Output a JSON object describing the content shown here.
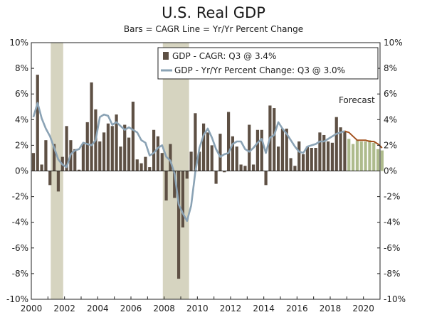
{
  "title": "U.S. Real GDP",
  "subtitle": "Bars = CAGR     Line = Yr/Yr Percent Change",
  "chart_data": {
    "type": "bar",
    "title": "U.S. Real GDP",
    "subtitle": "Bars = CAGR     Line = Yr/Yr Percent Change",
    "ylim": [
      -10,
      10
    ],
    "xlim": [
      2000,
      2021
    ],
    "y_ticks_left": [
      "10%",
      "8%",
      "6%",
      "4%",
      "2%",
      "0%",
      "-2%",
      "-4%",
      "-6%",
      "-8%",
      "-10%"
    ],
    "y_ticks_right": [
      "10%",
      "8%",
      "6%",
      "4%",
      "2%",
      "0%",
      "-2%",
      "-4%",
      "-6%",
      "-8%",
      "-10%"
    ],
    "x_ticks": [
      "2000",
      "2002",
      "2004",
      "2006",
      "2008",
      "2010",
      "2012",
      "2014",
      "2016",
      "2018",
      "2020"
    ],
    "grid": false,
    "legend": {
      "placement": "top-right",
      "entries": [
        {
          "label": "GDP - CAGR: Q3 @ 3.4%",
          "kind": "bar"
        },
        {
          "label": "GDP - Yr/Yr Percent Change: Q3 @ 3.0%",
          "kind": "line"
        }
      ]
    },
    "annotations": [
      {
        "text": "Forecast",
        "x": 2019.6,
        "y": 5.3
      }
    ],
    "recessions": [
      [
        2001.17,
        2001.92
      ],
      [
        2007.92,
        2009.5
      ]
    ],
    "colors": {
      "bar_actual": "#5e5044",
      "bar_forecast": "#aebb8c",
      "line_actual": "#8ba3b5",
      "line_forecast": "#a3521f",
      "recession": "#d6d4c0"
    },
    "quarters_start": "2000 Q1",
    "forecast_start_index": 76,
    "series": [
      {
        "name": "GDP - CAGR",
        "kind": "bar",
        "values": [
          1.4,
          7.5,
          0.5,
          2.4,
          -1.1,
          2.1,
          -1.6,
          1.1,
          3.5,
          2.4,
          1.7,
          0.1,
          2.1,
          3.8,
          6.9,
          4.8,
          2.3,
          3.0,
          3.7,
          3.5,
          4.4,
          1.9,
          3.6,
          2.6,
          5.4,
          0.9,
          0.6,
          1.1,
          0.3,
          3.2,
          2.7,
          1.4,
          -2.3,
          2.1,
          -2.1,
          -8.4,
          -4.4,
          -0.6,
          1.5,
          4.5,
          1.5,
          3.7,
          3.0,
          2.0,
          -1.0,
          2.9,
          -0.1,
          4.6,
          2.7,
          1.9,
          0.5,
          0.4,
          3.6,
          0.5,
          3.2,
          3.2,
          -1.1,
          5.1,
          4.9,
          1.9,
          3.3,
          3.3,
          1.0,
          0.4,
          2.3,
          1.3,
          1.9,
          1.8,
          1.8,
          3.0,
          2.8,
          2.3,
          2.2,
          4.2,
          3.4,
          3.1,
          2.5,
          2.1,
          2.4,
          2.3,
          2.3,
          2.4,
          2.2,
          1.7,
          1.6
        ]
      },
      {
        "name": "GDP - Yr/Yr Percent Change",
        "kind": "line",
        "values": [
          4.2,
          5.3,
          4.1,
          3.3,
          2.7,
          1.8,
          0.9,
          0.5,
          0.3,
          1.3,
          1.6,
          1.7,
          2.2,
          2.1,
          2.0,
          2.4,
          4.2,
          4.4,
          4.3,
          3.6,
          3.8,
          3.5,
          3.2,
          3.4,
          3.2,
          3.0,
          2.4,
          2.2,
          1.2,
          1.4,
          1.8,
          2.0,
          1.1,
          0.8,
          -0.2,
          -2.6,
          -3.3,
          -3.9,
          -2.7,
          -0.1,
          1.8,
          2.8,
          3.3,
          2.6,
          1.7,
          1.1,
          1.3,
          1.4,
          2.1,
          2.3,
          2.3,
          1.7,
          1.5,
          1.8,
          2.2,
          2.5,
          1.4,
          2.6,
          2.8,
          3.8,
          3.3,
          2.9,
          2.4,
          1.9,
          1.5,
          1.4,
          1.9,
          2.0,
          2.1,
          2.3,
          2.3,
          2.5,
          2.7,
          2.9,
          3.0,
          3.1,
          3.0,
          2.7,
          2.4,
          2.4,
          2.4,
          2.3,
          2.3,
          2.1,
          1.8
        ]
      }
    ]
  }
}
